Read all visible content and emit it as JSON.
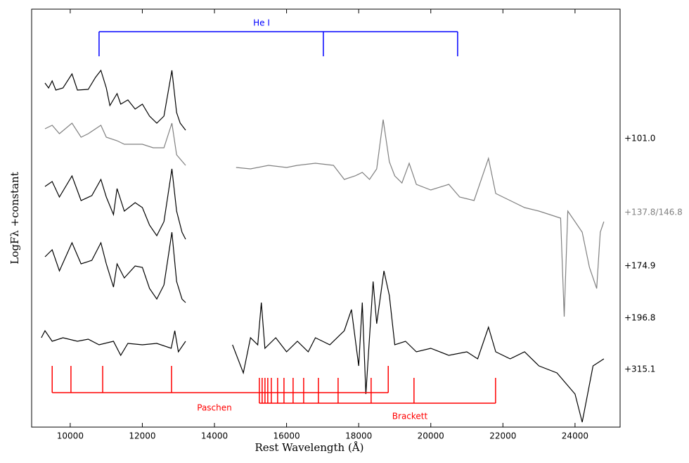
{
  "chart_data": {
    "type": "line",
    "xlabel": "Rest Wavelength (Å)",
    "ylabel": "LogFλ +constant",
    "xlim": [
      8930,
      25250
    ],
    "ylim": [
      0,
      594
    ],
    "xticks": [
      10000,
      12000,
      14000,
      16000,
      18000,
      20000,
      22000,
      24000
    ],
    "series": [
      {
        "name": "+101.0",
        "color": "#000000",
        "x": [
          9300,
          9400,
          9500,
          9600,
          9800,
          10050,
          10200,
          10500,
          10700,
          10850,
          11000,
          11100,
          11300,
          11400,
          11600,
          11800,
          12000,
          12200,
          12400,
          12600,
          12820,
          12950,
          13050,
          13200
        ],
        "values": [
          489,
          482,
          492,
          479,
          482,
          502,
          479,
          480,
          497,
          507,
          482,
          457,
          474,
          459,
          465,
          452,
          459,
          442,
          432,
          442,
          507,
          447,
          432,
          422
        ]
      },
      {
        "name": "+137.8/146.8",
        "color": "#808080",
        "x": [
          9300,
          9500,
          9700,
          10050,
          10300,
          10500,
          10850,
          11000,
          11300,
          11500,
          12000,
          12300,
          12600,
          12820,
          12950,
          13200,
          13900,
          14600,
          15000,
          15500,
          16000,
          16300,
          16800,
          17300,
          17600,
          17900,
          18100,
          18300,
          18500,
          18680,
          18850,
          19000,
          19200,
          19400,
          19600,
          20000,
          20500,
          20800,
          21200,
          21600,
          21800,
          22200,
          22600,
          23000,
          23300,
          23600,
          23700,
          23800,
          24000,
          24200,
          24400,
          24600,
          24700,
          24800
        ],
        "values": [
          424,
          429,
          417,
          432,
          412,
          417,
          429,
          412,
          407,
          402,
          402,
          397,
          397,
          432,
          387,
          372,
          null,
          369,
          367,
          372,
          369,
          372,
          375,
          372,
          352,
          357,
          362,
          352,
          367,
          437,
          377,
          357,
          347,
          375,
          345,
          337,
          345,
          327,
          322,
          382,
          332,
          322,
          312,
          307,
          302,
          297,
          157,
          307,
          292,
          277,
          227,
          197,
          277,
          292
        ]
      },
      {
        "name": "+174.9",
        "color": "#000000",
        "x": [
          9300,
          9500,
          9700,
          10050,
          10300,
          10600,
          10850,
          11000,
          11200,
          11300,
          11500,
          11800,
          12000,
          12200,
          12400,
          12600,
          12820,
          12950,
          13100,
          13200
        ],
        "values": [
          342,
          349,
          327,
          357,
          322,
          329,
          352,
          327,
          302,
          339,
          307,
          319,
          312,
          287,
          272,
          292,
          367,
          307,
          277,
          267
        ]
      },
      {
        "name": "+196.8",
        "color": "#000000",
        "x": [
          9300,
          9500,
          9700,
          10050,
          10300,
          10600,
          10850,
          11000,
          11200,
          11300,
          11500,
          11800,
          12000,
          12200,
          12400,
          12600,
          12820,
          12950,
          13100,
          13200
        ],
        "values": [
          242,
          252,
          222,
          262,
          232,
          237,
          262,
          232,
          199,
          232,
          212,
          229,
          227,
          197,
          182,
          202,
          277,
          207,
          182,
          177
        ]
      },
      {
        "name": "+315.1",
        "color": "#000000",
        "x": [
          9200,
          9300,
          9500,
          9800,
          10200,
          10500,
          10800,
          11200,
          11400,
          11600,
          12000,
          12400,
          12800,
          12900,
          13000,
          13200,
          13900,
          14500,
          14800,
          15000,
          15200,
          15300,
          15400,
          15700,
          16000,
          16300,
          16600,
          16800,
          17200,
          17600,
          17800,
          18000,
          18100,
          18200,
          18400,
          18500,
          18700,
          18850,
          19000,
          19300,
          19600,
          20000,
          20500,
          21000,
          21300,
          21600,
          21800,
          22200,
          22600,
          23000,
          23500,
          24000,
          24200,
          24500,
          24800
        ],
        "values": [
          127,
          137,
          122,
          127,
          122,
          125,
          117,
          122,
          102,
          119,
          117,
          119,
          112,
          137,
          107,
          122,
          null,
          117,
          77,
          127,
          117,
          177,
          112,
          127,
          107,
          122,
          107,
          127,
          117,
          137,
          167,
          87,
          177,
          47,
          207,
          147,
          222,
          187,
          117,
          122,
          107,
          112,
          102,
          107,
          97,
          142,
          107,
          97,
          107,
          87,
          77,
          47,
          7,
          87,
          97
        ]
      }
    ],
    "line_markers": [
      {
        "label": "He I",
        "color": "#0000ff",
        "x": [
          10800,
          17020,
          20744
        ]
      },
      {
        "label": "Paschen",
        "color": "#ff0000",
        "x": [
          9500,
          10020,
          10900,
          12810,
          18820
        ]
      },
      {
        "label": "Brackett",
        "color": "#ff0000",
        "x": [
          15245,
          15323,
          15401,
          15479,
          15577,
          15752,
          15928,
          16181,
          16474,
          16883,
          17429,
          18345,
          19534,
          21796
        ]
      }
    ]
  }
}
